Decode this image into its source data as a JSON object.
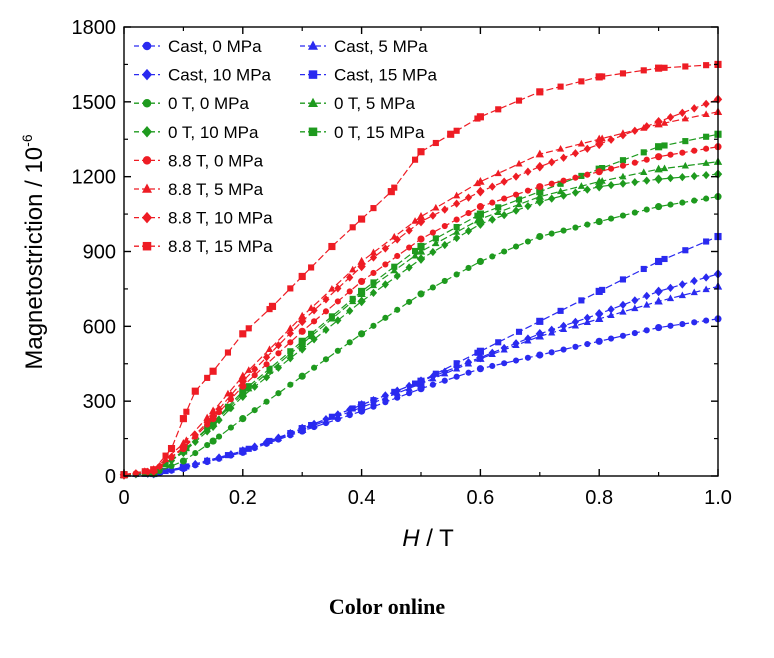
{
  "caption": "Color online",
  "chart_data": {
    "type": "line",
    "title": "",
    "xlabel_italic": "H",
    "xlabel_rest": " / T",
    "ylabel_main": "Magnetostriction / 10",
    "ylabel_exp": "-6",
    "xlim": [
      0,
      1.0
    ],
    "ylim": [
      0,
      1800
    ],
    "xticks": [
      0,
      0.2,
      0.4,
      0.6,
      0.8,
      1.0
    ],
    "xtick_labels": [
      "0",
      "0.2",
      "0.4",
      "0.6",
      "0.8",
      "1.0"
    ],
    "yticks": [
      0,
      300,
      600,
      900,
      1200,
      1500,
      1800
    ],
    "ytick_labels": [
      "0",
      "300",
      "600",
      "900",
      "1200",
      "1500",
      "1800"
    ],
    "grid": false,
    "legend": "top-left",
    "colors": {
      "blue": "#2a2af0",
      "green": "#1e9a1e",
      "red": "#ee1c24"
    },
    "series": [
      {
        "name": "Cast, 0 MPa",
        "color": "#2a2af0",
        "marker": "circle",
        "dense": true,
        "x": [
          0,
          0.05,
          0.1,
          0.2,
          0.3,
          0.4,
          0.5,
          0.6,
          0.7,
          0.8,
          0.9,
          1.0
        ],
        "y": [
          5,
          8,
          30,
          95,
          180,
          260,
          350,
          430,
          485,
          540,
          595,
          630
        ]
      },
      {
        "name": "Cast, 5 MPa",
        "color": "#2a2af0",
        "marker": "triangle",
        "dense": true,
        "x": [
          0,
          0.05,
          0.1,
          0.2,
          0.3,
          0.4,
          0.5,
          0.6,
          0.7,
          0.8,
          0.9,
          1.0
        ],
        "y": [
          5,
          10,
          35,
          100,
          185,
          275,
          370,
          470,
          560,
          630,
          700,
          760
        ]
      },
      {
        "name": "Cast, 10 MPa",
        "color": "#2a2af0",
        "marker": "diamond",
        "dense": true,
        "x": [
          0,
          0.05,
          0.1,
          0.2,
          0.3,
          0.4,
          0.5,
          0.6,
          0.7,
          0.8,
          0.9,
          1.0
        ],
        "y": [
          5,
          10,
          35,
          100,
          190,
          285,
          380,
          475,
          570,
          650,
          740,
          810
        ]
      },
      {
        "name": "Cast, 15 MPa",
        "color": "#2a2af0",
        "marker": "square",
        "dense": false,
        "x": [
          0,
          0.05,
          0.1,
          0.2,
          0.3,
          0.4,
          0.5,
          0.6,
          0.7,
          0.8,
          0.9,
          1.0
        ],
        "y": [
          5,
          10,
          35,
          100,
          190,
          285,
          380,
          500,
          620,
          740,
          860,
          960
        ]
      },
      {
        "name": "0 T, 0 MPa",
        "color": "#1e9a1e",
        "marker": "circle",
        "dense": true,
        "x": [
          0,
          0.05,
          0.1,
          0.15,
          0.2,
          0.3,
          0.4,
          0.5,
          0.6,
          0.7,
          0.8,
          0.9,
          1.0
        ],
        "y": [
          5,
          10,
          60,
          140,
          230,
          400,
          570,
          730,
          860,
          960,
          1020,
          1080,
          1120
        ]
      },
      {
        "name": "0 T, 5 MPa",
        "color": "#1e9a1e",
        "marker": "triangle",
        "dense": false,
        "x": [
          0,
          0.05,
          0.1,
          0.15,
          0.2,
          0.3,
          0.4,
          0.5,
          0.6,
          0.7,
          0.8,
          0.9,
          1.0
        ],
        "y": [
          5,
          12,
          100,
          210,
          330,
          530,
          730,
          900,
          1030,
          1120,
          1180,
          1230,
          1260
        ]
      },
      {
        "name": "0 T, 10 MPa",
        "color": "#1e9a1e",
        "marker": "diamond",
        "dense": true,
        "x": [
          0,
          0.05,
          0.1,
          0.15,
          0.2,
          0.3,
          0.4,
          0.5,
          0.6,
          0.7,
          0.8,
          0.9,
          1.0
        ],
        "y": [
          5,
          12,
          95,
          200,
          320,
          510,
          700,
          870,
          1010,
          1100,
          1160,
          1190,
          1210
        ]
      },
      {
        "name": "0 T, 15 MPa",
        "color": "#1e9a1e",
        "marker": "square",
        "dense": false,
        "x": [
          0,
          0.05,
          0.1,
          0.15,
          0.2,
          0.3,
          0.4,
          0.5,
          0.6,
          0.7,
          0.8,
          0.9,
          1.0
        ],
        "y": [
          5,
          12,
          100,
          215,
          340,
          540,
          740,
          920,
          1050,
          1140,
          1230,
          1320,
          1370
        ]
      },
      {
        "name": "8.8 T, 0 MPa",
        "color": "#ee1c24",
        "marker": "circle",
        "dense": true,
        "x": [
          0,
          0.05,
          0.1,
          0.15,
          0.2,
          0.3,
          0.4,
          0.5,
          0.6,
          0.7,
          0.8,
          0.9,
          1.0
        ],
        "y": [
          5,
          20,
          110,
          230,
          360,
          580,
          780,
          950,
          1080,
          1160,
          1220,
          1280,
          1320
        ]
      },
      {
        "name": "8.8 T, 5 MPa",
        "color": "#ee1c24",
        "marker": "triangle",
        "dense": false,
        "x": [
          0,
          0.05,
          0.1,
          0.15,
          0.2,
          0.3,
          0.4,
          0.5,
          0.6,
          0.7,
          0.8,
          0.9,
          1.0
        ],
        "y": [
          5,
          25,
          130,
          260,
          400,
          640,
          860,
          1040,
          1180,
          1290,
          1350,
          1410,
          1460
        ]
      },
      {
        "name": "8.8 T, 10 MPa",
        "color": "#ee1c24",
        "marker": "diamond",
        "dense": true,
        "x": [
          0,
          0.05,
          0.1,
          0.15,
          0.2,
          0.3,
          0.4,
          0.5,
          0.6,
          0.7,
          0.8,
          0.9,
          1.0
        ],
        "y": [
          5,
          20,
          115,
          240,
          380,
          620,
          840,
          1020,
          1140,
          1240,
          1330,
          1420,
          1510
        ]
      },
      {
        "name": "8.8 T, 15 MPa",
        "color": "#ee1c24",
        "marker": "square",
        "dense": false,
        "x": [
          0,
          0.05,
          0.08,
          0.1,
          0.12,
          0.15,
          0.2,
          0.25,
          0.3,
          0.35,
          0.4,
          0.45,
          0.5,
          0.55,
          0.6,
          0.7,
          0.8,
          0.9,
          1.0
        ],
        "y": [
          5,
          25,
          110,
          230,
          340,
          420,
          570,
          680,
          800,
          920,
          1030,
          1140,
          1300,
          1370,
          1440,
          1540,
          1600,
          1635,
          1650
        ]
      }
    ]
  }
}
